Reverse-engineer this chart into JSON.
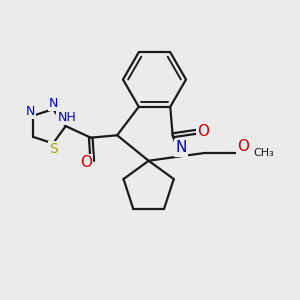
{
  "bg_color": "#ebebeb",
  "bond_color": "#1a1a1a",
  "bond_width": 1.6,
  "atom_colors": {
    "C": "#1a1a1a",
    "N": "#0000cc",
    "O": "#cc0000",
    "S": "#aaaa00",
    "H": "#1a1a1a"
  },
  "font_size": 9
}
